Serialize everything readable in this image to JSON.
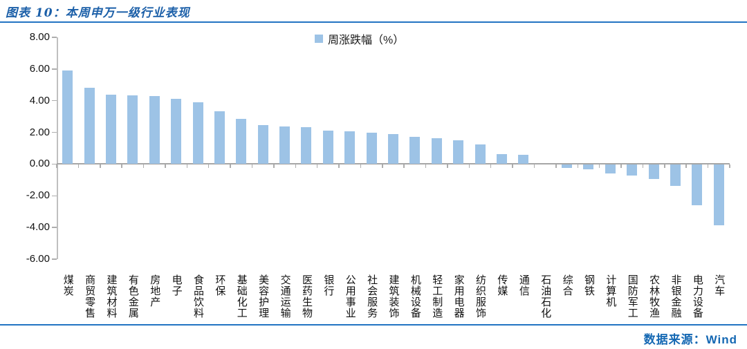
{
  "header": {
    "title": "图表 10：本周申万一级行业表现"
  },
  "footer": {
    "source_label": "数据来源：Wind"
  },
  "colors": {
    "bar": "#9DC3E6",
    "rule_blue": "#2173C2",
    "title_blue": "#1B5FA8",
    "footer_blue": "#1568B3",
    "axis_gray": "#A6A6A6"
  },
  "chart_data": {
    "type": "bar",
    "title": "图表 10：本周申万一级行业表现",
    "legend_label": "周涨跌幅（%）",
    "legend_position": "top-center",
    "grid": false,
    "ylim": [
      -6,
      8
    ],
    "ytick_step": 2,
    "ytick_values": [
      8,
      6,
      4,
      2,
      0,
      -2,
      -4,
      -6
    ],
    "ytick_labels": [
      "8.00",
      "6.00",
      "4.00",
      "2.00",
      "0.00",
      "-2.00",
      "-4.00",
      "-6.00"
    ],
    "categories": [
      "煤炭",
      "商贸零售",
      "建筑材料",
      "有色金属",
      "房地产",
      "电子",
      "食品饮料",
      "环保",
      "基础化工",
      "美容护理",
      "交通运输",
      "医药生物",
      "银行",
      "公用事业",
      "社会服务",
      "建筑装饰",
      "机械设备",
      "轻工制造",
      "家用电器",
      "纺织服饰",
      "传媒",
      "通信",
      "石油石化",
      "综合",
      "钢铁",
      "计算机",
      "国防军工",
      "农林牧渔",
      "非银金融",
      "电力设备",
      "汽车"
    ],
    "values": [
      5.9,
      4.8,
      4.4,
      4.35,
      4.3,
      4.1,
      3.88,
      3.35,
      2.85,
      2.45,
      2.37,
      2.35,
      2.1,
      2.05,
      1.97,
      1.9,
      1.7,
      1.65,
      1.52,
      1.22,
      0.62,
      0.6,
      0.0,
      -0.2,
      -0.28,
      -0.55,
      -0.7,
      -0.9,
      -1.35,
      -2.55,
      -3.8
    ]
  }
}
